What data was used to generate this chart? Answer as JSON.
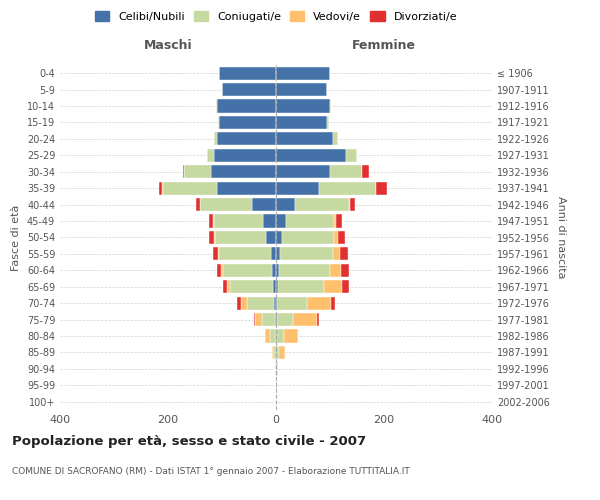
{
  "age_groups": [
    "0-4",
    "5-9",
    "10-14",
    "15-19",
    "20-24",
    "25-29",
    "30-34",
    "35-39",
    "40-44",
    "45-49",
    "50-54",
    "55-59",
    "60-64",
    "65-69",
    "70-74",
    "75-79",
    "80-84",
    "85-89",
    "90-94",
    "95-99",
    "100+"
  ],
  "birth_years": [
    "2002-2006",
    "1997-2001",
    "1992-1996",
    "1987-1991",
    "1982-1986",
    "1977-1981",
    "1972-1976",
    "1967-1971",
    "1962-1966",
    "1957-1961",
    "1952-1956",
    "1947-1951",
    "1942-1946",
    "1937-1941",
    "1932-1936",
    "1927-1931",
    "1922-1926",
    "1917-1921",
    "1912-1916",
    "1907-1911",
    "≤ 1906"
  ],
  "m_celibi": [
    105,
    100,
    110,
    105,
    110,
    115,
    120,
    110,
    45,
    25,
    18,
    10,
    8,
    5,
    3,
    1,
    2,
    1,
    0,
    0,
    0
  ],
  "m_coniugati": [
    0,
    0,
    1,
    2,
    5,
    12,
    50,
    100,
    95,
    90,
    95,
    95,
    90,
    80,
    50,
    25,
    10,
    5,
    1,
    0,
    0
  ],
  "m_vedovi": [
    0,
    0,
    0,
    0,
    0,
    0,
    0,
    1,
    1,
    1,
    2,
    2,
    3,
    5,
    12,
    12,
    8,
    2,
    0,
    0,
    0
  ],
  "m_divorziati": [
    0,
    0,
    0,
    0,
    0,
    1,
    3,
    5,
    8,
    8,
    10,
    10,
    8,
    8,
    7,
    3,
    1,
    0,
    0,
    0,
    0
  ],
  "f_nubili": [
    100,
    95,
    100,
    95,
    105,
    130,
    100,
    80,
    35,
    18,
    12,
    8,
    5,
    3,
    2,
    1,
    0,
    0,
    0,
    0,
    0
  ],
  "f_coniugate": [
    0,
    0,
    2,
    4,
    10,
    20,
    60,
    105,
    100,
    90,
    95,
    98,
    95,
    85,
    55,
    30,
    15,
    5,
    1,
    0,
    0
  ],
  "f_vedove": [
    0,
    0,
    0,
    0,
    0,
    0,
    0,
    1,
    2,
    4,
    8,
    12,
    20,
    35,
    45,
    45,
    25,
    12,
    3,
    1,
    0
  ],
  "f_divorziate": [
    0,
    0,
    0,
    0,
    0,
    0,
    12,
    20,
    10,
    10,
    12,
    15,
    15,
    12,
    8,
    3,
    1,
    0,
    0,
    0,
    0
  ],
  "colors": {
    "celibi": "#4472a8",
    "coniugati": "#c5d9a0",
    "vedovi": "#ffc06e",
    "divorziati": "#e03030"
  },
  "xlim": 400,
  "title": "Popolazione per età, sesso e stato civile - 2007",
  "subtitle": "COMUNE DI SACROFANO (RM) - Dati ISTAT 1° gennaio 2007 - Elaborazione TUTTITALIA.IT",
  "ylabel_left": "Fasce di età",
  "ylabel_right": "Anni di nascita",
  "xlabel_left": "Maschi",
  "xlabel_right": "Femmine",
  "bg_color": "#ffffff",
  "grid_color": "#cccccc"
}
